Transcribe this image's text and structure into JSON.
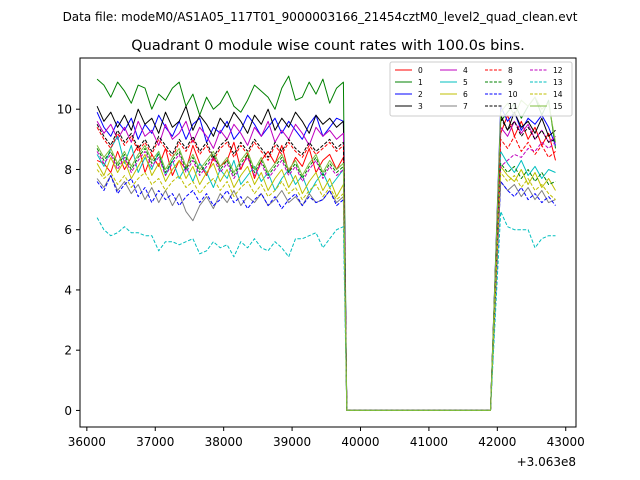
{
  "figure_caption": "Data file: modeM0/AS1A05_117T01_9000003166_21454cztM0_level2_quad_clean.evt",
  "chart_data": {
    "type": "line",
    "title": "Quadrant 0 module wise count rates with 100.0s bins.",
    "xlabel": "",
    "ylabel": "",
    "x_offset_label": "+3.063e8",
    "xlim": [
      35900,
      43150
    ],
    "ylim": [
      -0.55,
      11.7
    ],
    "x_ticks": [
      36000,
      37000,
      38000,
      39000,
      40000,
      41000,
      42000,
      43000
    ],
    "y_ticks": [
      0,
      2,
      4,
      6,
      8,
      10
    ],
    "legend_location": "upper right",
    "gap": {
      "start": 39800,
      "end": 41900,
      "value": 0.0
    },
    "x_segment_1": [
      36150,
      36250,
      36350,
      36450,
      36550,
      36650,
      36750,
      36850,
      36950,
      37050,
      37150,
      37250,
      37350,
      37450,
      37550,
      37650,
      37750,
      37850,
      37950,
      38050,
      38150,
      38250,
      38350,
      38450,
      38550,
      38650,
      38750,
      38850,
      38950,
      39050,
      39150,
      39250,
      39350,
      39450,
      39550,
      39650,
      39750
    ],
    "x_segment_2": [
      42050,
      42150,
      42250,
      42350,
      42450,
      42550,
      42650,
      42750,
      42850
    ],
    "series": [
      {
        "name": "0",
        "color": "#ff0000",
        "dash": "solid",
        "segment_1": [
          8.3,
          8.2,
          7.9,
          8.6,
          8.0,
          8.4,
          8.8,
          7.9,
          8.5,
          8.1,
          8.7,
          7.8,
          8.3,
          8.0,
          8.8,
          8.2,
          7.8,
          8.4,
          8.1,
          8.3,
          8.9,
          8.0,
          8.5,
          7.7,
          8.3,
          8.6,
          8.2,
          8.8,
          7.9,
          8.4,
          8.1,
          8.7,
          7.9,
          8.3,
          8.5,
          8.0,
          8.4
        ],
        "segment_2": [
          9.2,
          9.8,
          9.1,
          9.6,
          9.0,
          9.4,
          8.8,
          9.2,
          8.3
        ]
      },
      {
        "name": "1",
        "color": "#008000",
        "dash": "solid",
        "segment_1": [
          11.0,
          10.8,
          10.4,
          10.9,
          10.6,
          10.2,
          10.8,
          10.7,
          10.0,
          10.5,
          10.3,
          10.7,
          10.9,
          10.1,
          10.5,
          9.8,
          10.4,
          10.0,
          10.2,
          10.6,
          10.1,
          9.9,
          10.3,
          10.8,
          10.6,
          10.4,
          10.0,
          10.7,
          11.1,
          10.3,
          10.4,
          10.9,
          10.5,
          11.0,
          10.2,
          10.7,
          10.9
        ],
        "segment_2": [
          9.6,
          9.9,
          10.2,
          9.7,
          10.1,
          10.4,
          9.8,
          10.3,
          8.7
        ]
      },
      {
        "name": "2",
        "color": "#0000ff",
        "dash": "solid",
        "segment_1": [
          9.9,
          9.4,
          9.1,
          9.6,
          9.3,
          9.7,
          9.0,
          9.5,
          9.2,
          9.8,
          9.4,
          9.1,
          9.6,
          9.0,
          9.5,
          9.7,
          8.9,
          9.4,
          9.2,
          9.6,
          9.0,
          9.3,
          9.8,
          9.5,
          9.1,
          9.4,
          9.7,
          9.2,
          9.6,
          9.3,
          9.0,
          9.5,
          9.8,
          9.1,
          9.4,
          9.7,
          9.6
        ],
        "segment_2": [
          10.1,
          9.6,
          9.9,
          9.3,
          9.7,
          9.5,
          9.8,
          9.4,
          8.8
        ]
      },
      {
        "name": "3",
        "color": "#000000",
        "dash": "solid",
        "segment_1": [
          10.1,
          9.6,
          9.9,
          9.4,
          9.8,
          9.3,
          10.0,
          9.5,
          9.7,
          9.2,
          9.9,
          9.4,
          9.6,
          10.1,
          9.3,
          9.8,
          9.5,
          9.1,
          9.7,
          9.4,
          9.9,
          9.6,
          9.2,
          9.8,
          9.5,
          10.0,
          9.3,
          9.7,
          9.4,
          9.9,
          9.6,
          9.2,
          9.8,
          9.5,
          9.7,
          9.4,
          9.6
        ],
        "segment_2": [
          9.8,
          9.3,
          9.9,
          9.4,
          9.6,
          9.2,
          9.7,
          9.1,
          9.3
        ]
      },
      {
        "name": "4",
        "color": "#bf00bf",
        "dash": "solid",
        "segment_1": [
          9.6,
          9.2,
          9.5,
          9.0,
          9.4,
          8.9,
          9.6,
          9.1,
          9.3,
          8.8,
          9.5,
          9.0,
          9.2,
          9.6,
          8.9,
          9.4,
          9.1,
          8.7,
          9.3,
          9.0,
          9.5,
          9.2,
          8.8,
          9.4,
          9.1,
          9.6,
          8.9,
          9.3,
          9.0,
          9.5,
          9.2,
          8.8,
          9.4,
          9.1,
          9.3,
          9.0,
          9.2
        ],
        "segment_2": [
          9.4,
          9.1,
          9.6,
          9.2,
          9.5,
          9.0,
          9.3,
          8.9,
          9.1
        ]
      },
      {
        "name": "5",
        "color": "#00bfbf",
        "dash": "solid",
        "segment_1": [
          8.5,
          8.1,
          8.7,
          9.1,
          8.2,
          8.8,
          7.9,
          8.4,
          8.0,
          8.6,
          7.8,
          8.3,
          7.7,
          8.1,
          7.6,
          8.2,
          7.9,
          7.4,
          8.0,
          7.7,
          8.3,
          7.5,
          7.8,
          8.1,
          7.6,
          7.9,
          7.3,
          7.7,
          8.0,
          7.5,
          7.8,
          7.2,
          7.6,
          7.9,
          7.4,
          7.7,
          8.0
        ],
        "segment_2": [
          8.6,
          8.2,
          7.9,
          8.3,
          7.8,
          8.1,
          7.7,
          8.0,
          7.9
        ]
      },
      {
        "name": "6",
        "color": "#bfbf00",
        "dash": "solid",
        "segment_1": [
          8.2,
          7.8,
          8.4,
          7.9,
          8.3,
          7.7,
          8.1,
          8.5,
          7.8,
          8.2,
          7.6,
          8.0,
          8.3,
          7.7,
          8.1,
          7.5,
          7.9,
          8.2,
          7.6,
          8.0,
          7.4,
          7.8,
          8.1,
          7.5,
          7.9,
          7.3,
          7.7,
          8.0,
          7.4,
          7.8,
          7.2,
          7.6,
          7.9,
          7.3,
          7.7,
          7.1,
          7.5
        ],
        "segment_2": [
          8.1,
          7.8,
          7.6,
          8.0,
          7.5,
          7.9,
          7.4,
          7.7,
          7.3
        ]
      },
      {
        "name": "7",
        "color": "#808080",
        "dash": "solid",
        "segment_1": [
          7.7,
          7.4,
          7.8,
          7.3,
          7.6,
          7.2,
          7.5,
          7.0,
          7.4,
          6.9,
          7.3,
          6.8,
          7.2,
          6.6,
          6.3,
          6.8,
          7.1,
          6.7,
          7.2,
          6.9,
          7.3,
          6.8,
          7.1,
          6.9,
          7.2,
          6.8,
          7.0,
          7.3,
          6.9,
          7.1,
          6.8,
          7.2,
          6.9,
          7.0,
          7.3,
          6.9,
          7.1
        ],
        "segment_2": [
          7.6,
          7.3,
          7.5,
          7.1,
          7.4,
          7.0,
          7.3,
          6.9,
          7.0
        ]
      },
      {
        "name": "8",
        "color": "#ff0000",
        "dash": "dashed",
        "segment_1": [
          9.4,
          9.0,
          8.7,
          9.2,
          8.8,
          9.1,
          8.6,
          8.9,
          8.5,
          9.0,
          8.7,
          8.4,
          8.9,
          8.6,
          9.0,
          8.5,
          8.8,
          8.3,
          8.7,
          8.9,
          8.4,
          8.8,
          8.5,
          8.9,
          8.6,
          8.3,
          8.8,
          8.5,
          8.9,
          8.6,
          8.4,
          8.8,
          8.5,
          8.7,
          8.9,
          8.6,
          8.8
        ],
        "segment_2": [
          9.0,
          8.7,
          9.1,
          8.6,
          8.9,
          8.5,
          8.8,
          8.4,
          8.6
        ]
      },
      {
        "name": "9",
        "color": "#008000",
        "dash": "dashed",
        "segment_1": [
          8.7,
          8.3,
          8.6,
          8.1,
          8.5,
          8.0,
          8.4,
          8.7,
          8.2,
          8.5,
          7.9,
          8.3,
          8.6,
          8.0,
          8.4,
          7.9,
          8.2,
          8.5,
          8.0,
          8.3,
          7.8,
          8.2,
          8.5,
          7.9,
          8.3,
          7.8,
          8.1,
          8.4,
          7.9,
          8.2,
          7.7,
          8.1,
          8.4,
          7.8,
          8.2,
          7.9,
          8.1
        ],
        "segment_2": [
          8.2,
          7.9,
          8.1,
          7.7,
          8.0,
          7.6,
          7.9,
          7.5,
          7.6
        ]
      },
      {
        "name": "10",
        "color": "#0000ff",
        "dash": "dashed",
        "segment_1": [
          7.6,
          7.3,
          7.8,
          7.2,
          7.5,
          7.7,
          7.1,
          7.4,
          6.9,
          7.3,
          7.0,
          7.2,
          6.8,
          7.1,
          7.3,
          6.9,
          7.2,
          6.8,
          7.0,
          7.3,
          6.9,
          7.1,
          6.7,
          7.0,
          7.2,
          6.8,
          7.1,
          6.7,
          7.0,
          7.2,
          6.8,
          7.1,
          6.9,
          7.0,
          7.3,
          6.8,
          7.0
        ],
        "segment_2": [
          7.6,
          7.3,
          7.1,
          7.4,
          7.0,
          7.2,
          6.9,
          7.1,
          6.8
        ]
      },
      {
        "name": "11",
        "color": "#000000",
        "dash": "dashed",
        "segment_1": [
          9.5,
          9.1,
          8.8,
          9.3,
          8.9,
          9.2,
          8.7,
          9.0,
          8.6,
          9.1,
          8.8,
          8.5,
          9.0,
          8.7,
          9.1,
          8.6,
          8.9,
          8.4,
          8.8,
          9.0,
          8.5,
          8.9,
          8.6,
          9.0,
          8.7,
          8.4,
          8.9,
          8.6,
          9.0,
          8.7,
          8.5,
          8.9,
          8.6,
          8.8,
          9.0,
          8.7,
          8.9
        ],
        "segment_2": [
          9.7,
          9.3,
          9.6,
          9.1,
          9.4,
          9.0,
          9.3,
          8.9,
          9.0
        ]
      },
      {
        "name": "12",
        "color": "#bf00bf",
        "dash": "dashed",
        "segment_1": [
          8.6,
          8.2,
          8.5,
          8.0,
          8.4,
          7.9,
          8.3,
          8.6,
          8.1,
          8.4,
          7.8,
          8.2,
          8.5,
          7.9,
          8.3,
          7.8,
          8.1,
          8.4,
          7.9,
          8.2,
          7.7,
          8.1,
          8.4,
          7.8,
          8.2,
          7.7,
          8.0,
          8.3,
          7.8,
          8.1,
          7.6,
          8.0,
          8.3,
          7.7,
          8.1,
          7.8,
          8.0
        ],
        "segment_2": [
          8.1,
          8.3,
          8.5,
          8.4,
          8.7,
          8.6,
          8.9,
          8.7,
          8.9
        ]
      },
      {
        "name": "13",
        "color": "#00bfbf",
        "dash": "dashed",
        "segment_1": [
          6.4,
          6.0,
          5.8,
          5.9,
          6.1,
          5.9,
          5.9,
          5.8,
          5.8,
          5.3,
          5.6,
          5.6,
          5.5,
          5.6,
          5.7,
          5.2,
          5.3,
          5.6,
          5.4,
          5.5,
          5.1,
          5.6,
          5.4,
          5.7,
          5.4,
          5.3,
          5.6,
          5.4,
          5.1,
          5.7,
          5.7,
          5.8,
          5.9,
          5.4,
          5.7,
          6.0,
          6.1
        ],
        "segment_2": [
          6.6,
          6.1,
          6.0,
          6.0,
          6.0,
          5.4,
          5.7,
          5.8,
          5.8
        ]
      },
      {
        "name": "14",
        "color": "#bfbf00",
        "dash": "dashed",
        "segment_1": [
          8.0,
          7.7,
          7.9,
          7.5,
          7.8,
          7.4,
          7.7,
          7.9,
          7.5,
          7.7,
          7.3,
          7.6,
          7.8,
          7.4,
          7.6,
          7.2,
          7.5,
          7.7,
          7.3,
          7.6,
          7.1,
          7.4,
          7.6,
          7.2,
          7.5,
          7.1,
          7.3,
          7.6,
          7.2,
          7.4,
          7.0,
          7.3,
          7.5,
          7.1,
          7.4,
          7.0,
          7.2
        ],
        "segment_2": [
          7.9,
          7.6,
          7.8,
          7.4,
          7.7,
          7.3,
          7.5,
          7.2,
          7.0
        ]
      },
      {
        "name": "15",
        "color": "#7fbf3f",
        "dash": "solid",
        "segment_1": [
          8.8,
          8.4,
          8.7,
          8.2,
          8.6,
          8.1,
          8.5,
          8.8,
          8.3,
          8.6,
          8.0,
          8.4,
          8.7,
          8.1,
          8.5,
          8.0,
          8.3,
          8.6,
          8.1,
          8.4,
          7.9,
          8.3,
          8.6,
          8.0,
          8.4,
          7.9,
          8.2,
          8.5,
          8.0,
          8.3,
          7.8,
          8.2,
          8.5,
          7.9,
          8.3,
          8.0,
          8.2
        ],
        "segment_2": [
          9.9,
          10.2,
          9.8,
          10.3,
          10.1,
          10.4,
          10.0,
          10.2,
          8.9
        ]
      }
    ]
  }
}
